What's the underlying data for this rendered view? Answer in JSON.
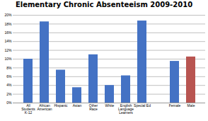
{
  "chart_data": {
    "type": "bar",
    "title": "Elementary Chronic Absenteeism 2009-2010",
    "categories": [
      "All\nStudents\nK-12",
      "African\nAmerican",
      "Hispanic",
      "Asian",
      "Other\nRace",
      "White",
      "English\nLanguage\nLearners",
      "Special Ed",
      null,
      "Female",
      "Male"
    ],
    "values": [
      10.0,
      18.5,
      7.5,
      3.5,
      11.0,
      4.0,
      6.2,
      18.7,
      0,
      9.5,
      10.5
    ],
    "colors": [
      "#4472C4",
      "#4472C4",
      "#4472C4",
      "#4472C4",
      "#4472C4",
      "#4472C4",
      "#4472C4",
      "#4472C4",
      "#FFFFFF",
      "#4472C4",
      "#B85450"
    ],
    "ylim": [
      0,
      20
    ],
    "yticks": [
      {
        "value": 0,
        "label": "0%"
      },
      {
        "value": 2,
        "label": "2%"
      },
      {
        "value": 4,
        "label": "4%"
      },
      {
        "value": 6,
        "label": "6%"
      },
      {
        "value": 8,
        "label": "8%"
      },
      {
        "value": 10,
        "label": "10%"
      },
      {
        "value": 12,
        "label": "12%"
      },
      {
        "value": 14,
        "label": "14%"
      },
      {
        "value": 16,
        "label": "16%"
      },
      {
        "value": 18,
        "label": "18%"
      },
      {
        "value": 20,
        "label": "20%"
      }
    ],
    "grid": true
  }
}
